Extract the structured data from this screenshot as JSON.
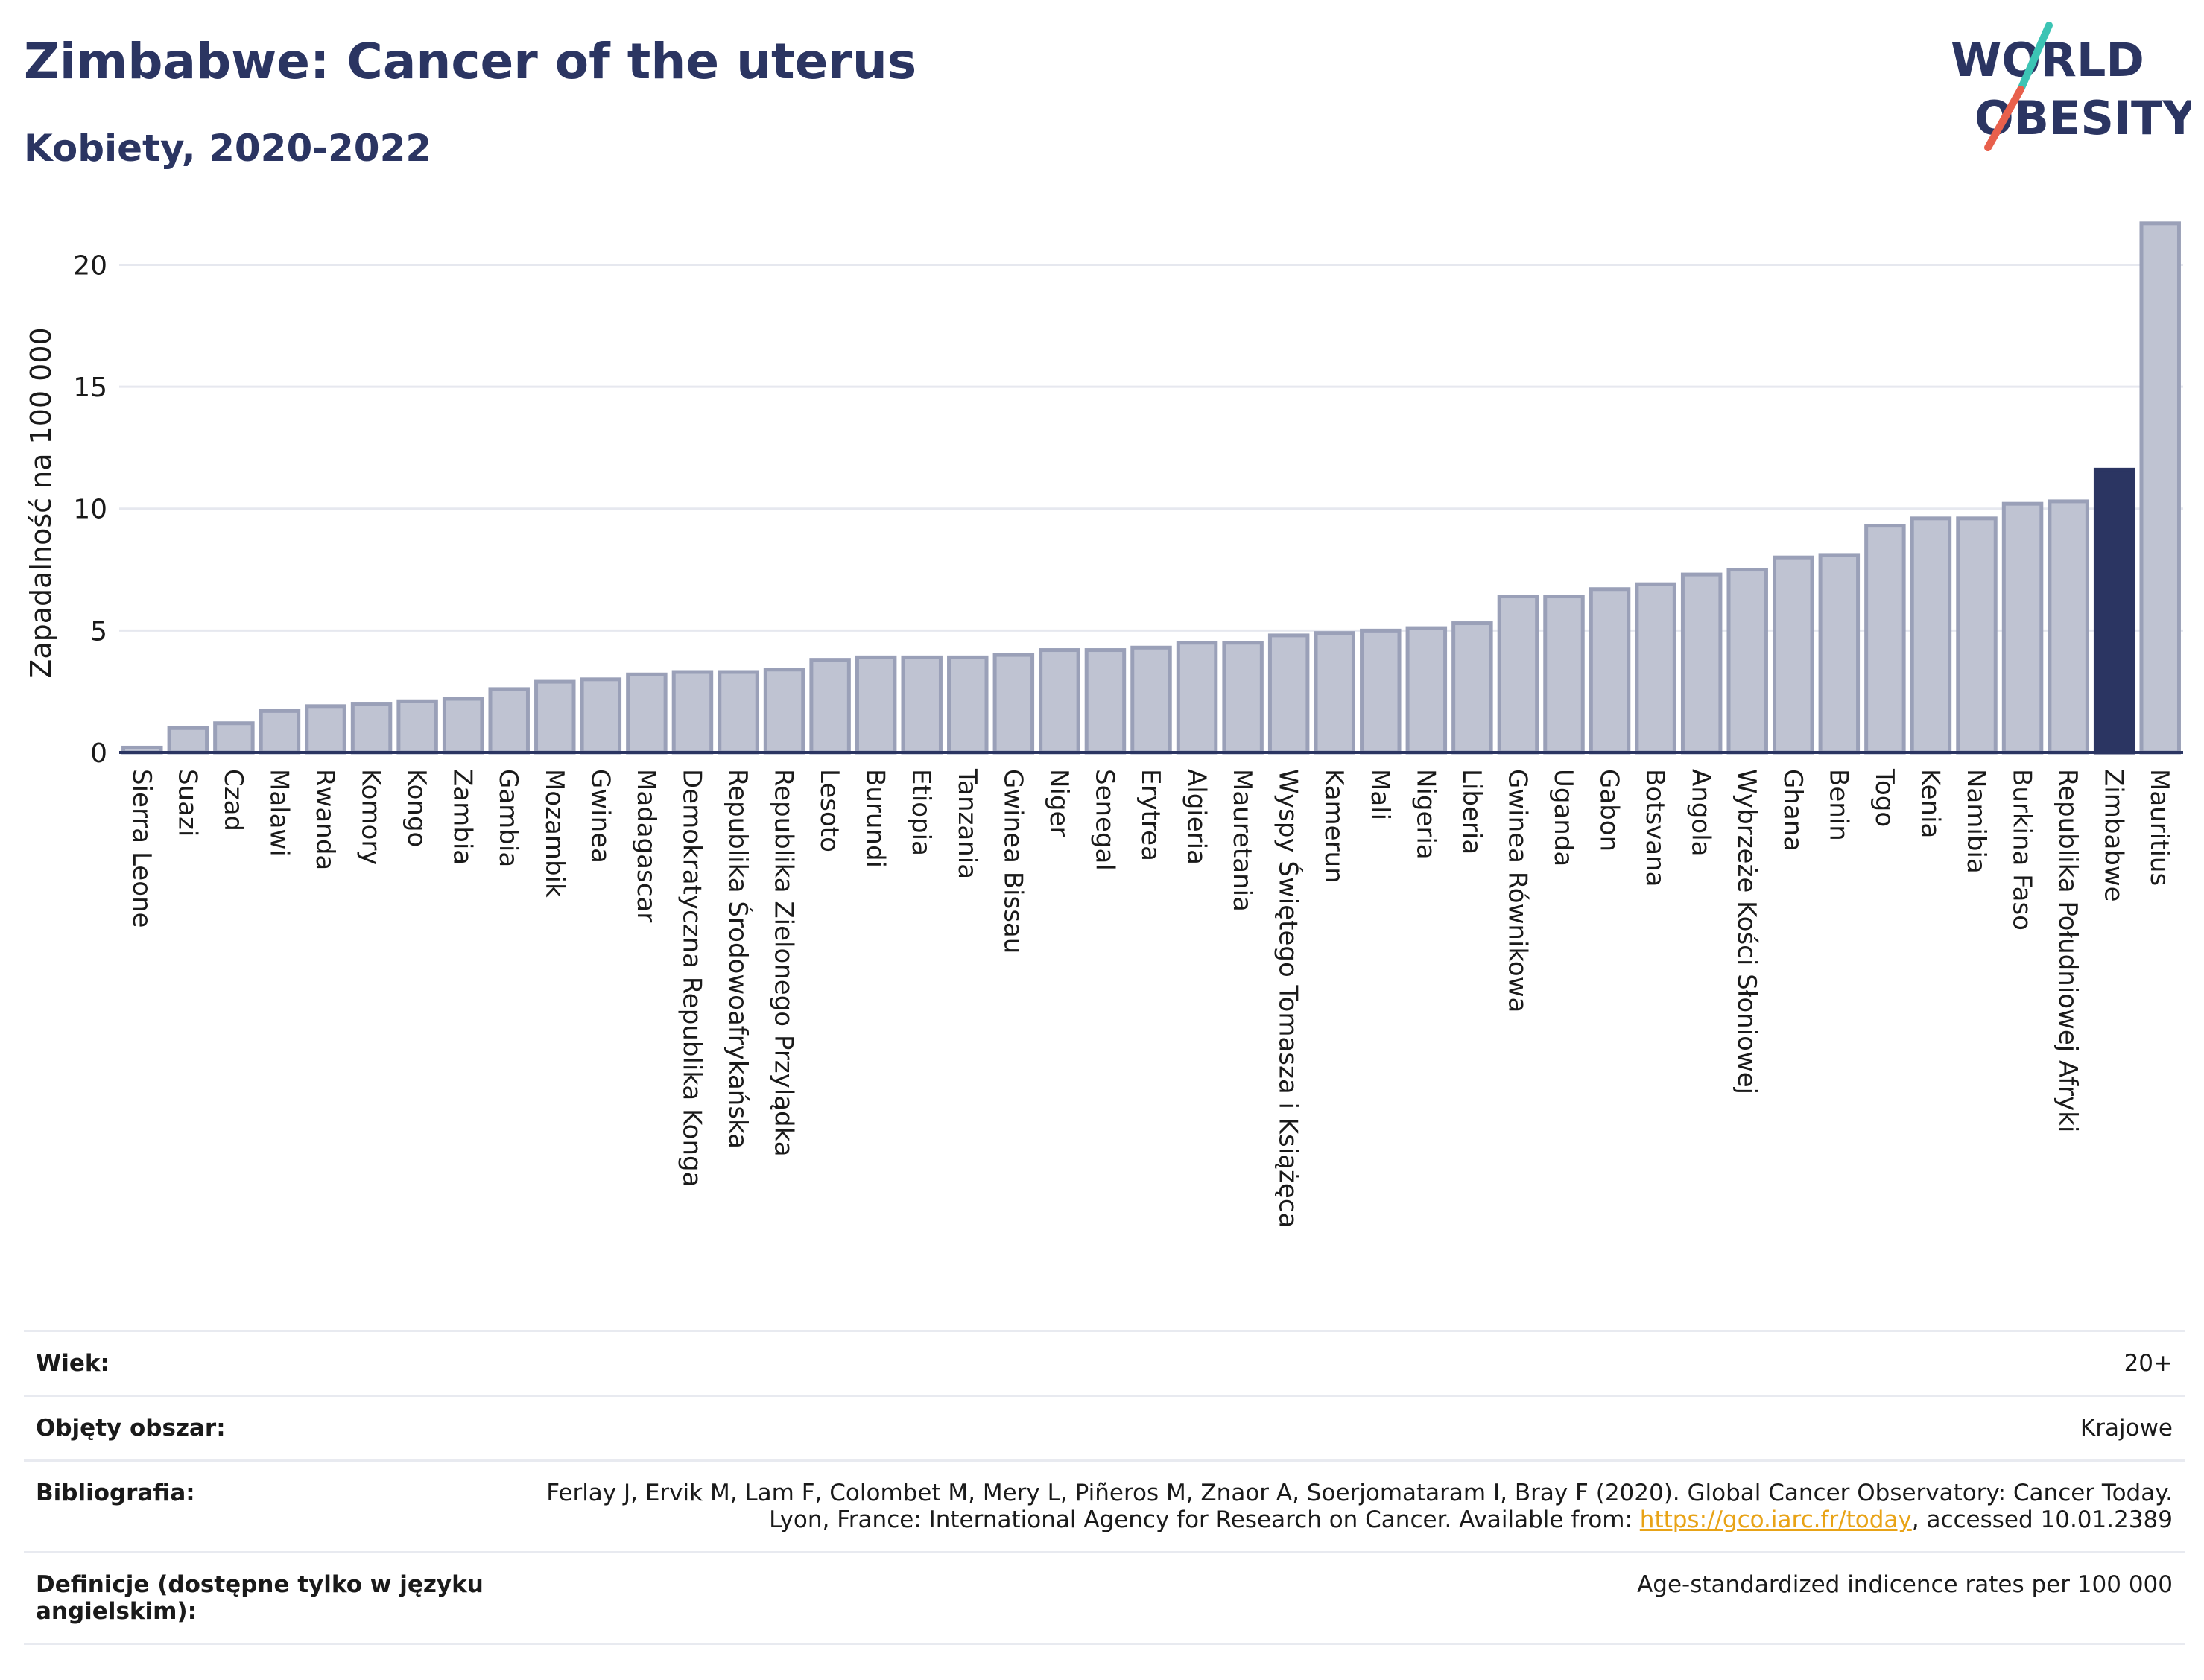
{
  "header": {
    "title": "Zimbabwe: Cancer of the uterus",
    "subtitle": "Kobiety, 2020-2022"
  },
  "logo": {
    "line1": "WORLD",
    "line2": "OBESITY",
    "colors": [
      "#2b3562",
      "#3cc4b4",
      "#e8604c"
    ]
  },
  "chart_data": {
    "type": "bar",
    "ylabel": "Zapadalność na 100 000",
    "ylim": [
      0,
      22
    ],
    "yticks": [
      0,
      5,
      10,
      15,
      20
    ],
    "grid": true,
    "highlight": "Zimbabwe",
    "colors": {
      "bar": "#bfc3d2",
      "bar_edge": "#9aa0b8",
      "highlight": "#2b3562",
      "axis": "#2b3562",
      "grid": "#e6e8ef"
    },
    "categories": [
      "Sierra Leone",
      "Suazi",
      "Czad",
      "Malawi",
      "Rwanda",
      "Komory",
      "Kongo",
      "Zambia",
      "Gambia",
      "Mozambik",
      "Gwinea",
      "Madagascar",
      "Demokratyczna Republika Konga",
      "Republika Środowoafrykańska",
      "Republika Zielonego Przylądka",
      "Lesoto",
      "Burundi",
      "Etiopia",
      "Tanzania",
      "Gwinea Bissau",
      "Niger",
      "Senegal",
      "Erytrea",
      "Algieria",
      "Mauretania",
      "Wyspy Świętego Tomasza i Książęca",
      "Kamerun",
      "Mali",
      "Nigeria",
      "Liberia",
      "Gwinea Równikowa",
      "Uganda",
      "Gabon",
      "Botsvana",
      "Angola",
      "Wybrzeże Kości Słoniowej",
      "Ghana",
      "Benin",
      "Togo",
      "Kenia",
      "Namibia",
      "Burkina Faso",
      "Republika Południowej Afryki",
      "Zimbabwe",
      "Mauritius"
    ],
    "values": [
      0.2,
      1.0,
      1.2,
      1.7,
      1.9,
      2.0,
      2.1,
      2.2,
      2.6,
      2.9,
      3.0,
      3.2,
      3.3,
      3.3,
      3.4,
      3.8,
      3.9,
      3.9,
      3.9,
      4.0,
      4.2,
      4.2,
      4.3,
      4.5,
      4.5,
      4.8,
      4.9,
      5.0,
      5.1,
      5.3,
      6.4,
      6.4,
      6.7,
      6.9,
      7.3,
      7.5,
      8.0,
      8.1,
      9.3,
      9.6,
      9.6,
      10.2,
      10.3,
      11.6,
      21.7
    ]
  },
  "meta": [
    {
      "label": "Wiek:",
      "value": "20+"
    },
    {
      "label": "Objęty obszar:",
      "value": "Krajowe"
    },
    {
      "label": "Bibliografia:",
      "value_pre": "Ferlay J, Ervik M, Lam F, Colombet M, Mery L, Piñeros M, Znaor A, Soerjomataram I, Bray F (2020). Global Cancer Observatory: Cancer Today. Lyon, France: International Agency for Research on Cancer. Available from: ",
      "link": "https://gco.iarc.fr/today",
      "value_post": ", accessed 10.01.2389"
    },
    {
      "label": "Definicje (dostępne tylko w języku angielskim):",
      "value": "Age-standardized indicence rates per 100 000"
    }
  ]
}
